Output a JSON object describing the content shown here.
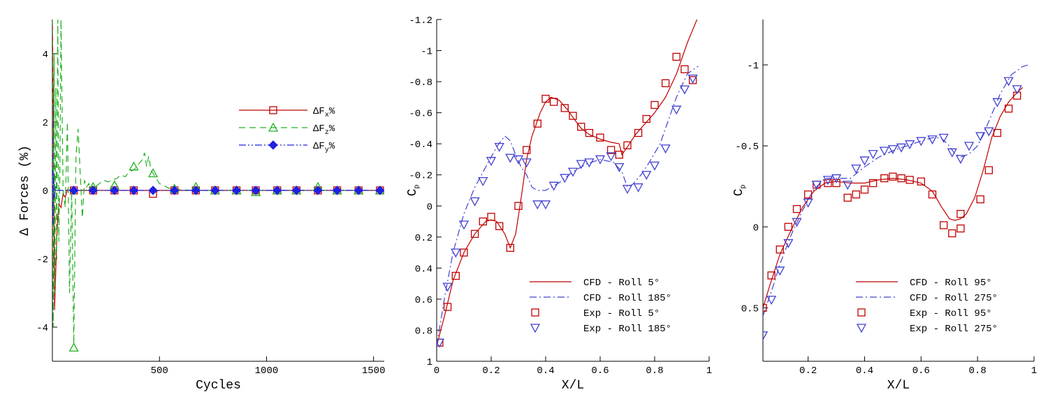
{
  "chart_data": [
    {
      "type": "line",
      "xlabel": "Cycles",
      "ylabel": "Δ Forces (%)",
      "xlim": [
        0,
        1550
      ],
      "ylim": [
        -5,
        5
      ],
      "xticks": [
        500,
        1000,
        1500
      ],
      "yticks": [
        4,
        2,
        0,
        -2,
        -4
      ],
      "legend_position": "center-right",
      "series": [
        {
          "name": "ΔFx%",
          "name_base": "ΔF",
          "name_sub": "x",
          "name_suffix": "%",
          "color": "#c00000",
          "dash": "solid",
          "marker": "square-open",
          "x": [
            0,
            5,
            10,
            15,
            20,
            25,
            30,
            40,
            50,
            60,
            70,
            80,
            100,
            120,
            150,
            200,
            250,
            300,
            350,
            400,
            450,
            470,
            500,
            1550
          ],
          "y": [
            5,
            2,
            -3.5,
            -2.5,
            -1.5,
            -0.8,
            -0.4,
            -0.5,
            -0.1,
            -0.2,
            0.02,
            0,
            0,
            0,
            0,
            0,
            0,
            0,
            0,
            0,
            0,
            -0.05,
            0,
            0
          ],
          "marker_x": [
            100,
            190,
            290,
            380,
            470,
            570,
            670,
            760,
            860,
            950,
            1050,
            1140,
            1240,
            1330,
            1430,
            1530
          ],
          "marker_y": [
            0,
            0,
            0,
            0,
            -0.1,
            0,
            0,
            0,
            0,
            0,
            0,
            0,
            0,
            0,
            0,
            0
          ]
        },
        {
          "name": "ΔFz%",
          "name_base": "ΔF",
          "name_sub": "z",
          "name_suffix": "%",
          "color": "#20b020",
          "dash": "dashed",
          "marker": "triangle-open",
          "x": [
            0,
            4,
            8,
            12,
            16,
            20,
            25,
            30,
            35,
            40,
            50,
            60,
            70,
            80,
            90,
            100,
            110,
            120,
            130,
            140,
            150,
            160,
            170,
            180,
            190,
            200,
            220,
            240,
            260,
            280,
            300,
            320,
            340,
            360,
            380,
            400,
            420,
            430,
            440,
            450,
            460,
            470,
            480,
            500,
            550,
            600,
            650,
            1550
          ],
          "y": [
            5,
            -4,
            4,
            -3,
            3,
            -2,
            5,
            -1.5,
            0.5,
            5,
            0,
            -0.5,
            2,
            -3,
            0,
            -4.5,
            1,
            1.8,
            0.5,
            -0.8,
            0.3,
            0.1,
            0.2,
            0,
            0.15,
            0.1,
            0.2,
            0.3,
            0.25,
            0.3,
            0.35,
            0.45,
            0.4,
            0.55,
            0.6,
            0.75,
            0.9,
            1.1,
            0.7,
            1.0,
            0.6,
            0.5,
            0.4,
            0.2,
            0.05,
            0.02,
            0,
            0
          ],
          "marker_x": [
            100,
            190,
            290,
            380,
            470,
            570,
            670,
            760,
            860,
            950,
            1050,
            1140,
            1240,
            1330,
            1430,
            1530
          ],
          "marker_y": [
            -4.6,
            0.1,
            0.15,
            0.7,
            0.5,
            0.05,
            0.1,
            0,
            0,
            -0.05,
            0,
            0,
            0.1,
            0,
            0,
            0
          ]
        },
        {
          "name": "ΔFy%",
          "name_base": "ΔF",
          "name_sub": "y",
          "name_suffix": "%",
          "color": "#2020e0",
          "dash": "dashdotdot",
          "marker": "diamond-filled",
          "x": [
            0,
            3,
            6,
            10,
            15,
            20,
            30,
            50,
            1550
          ],
          "y": [
            2.5,
            -1.0,
            0.5,
            -0.2,
            0.1,
            0,
            0,
            0,
            0
          ],
          "marker_x": [
            100,
            190,
            290,
            380,
            470,
            570,
            670,
            760,
            860,
            950,
            1050,
            1140,
            1240,
            1330,
            1430,
            1530
          ],
          "marker_y": [
            0,
            0,
            0,
            0,
            0,
            0,
            0,
            0,
            0,
            0,
            0,
            0,
            0,
            0,
            0,
            0
          ]
        }
      ]
    },
    {
      "type": "line",
      "xlabel": "X/L",
      "ylabel": "Cp",
      "ylabel_base": "C",
      "ylabel_sub": "p",
      "xlim": [
        0,
        1
      ],
      "ylim": [
        1,
        -1.2
      ],
      "y_inverted": true,
      "xticks": [
        0,
        0.2,
        0.4,
        0.6,
        0.8,
        1
      ],
      "xtick_labels": [
        "0",
        "0.2",
        "0.4",
        "0.6",
        "0.8",
        "1"
      ],
      "yticks": [
        -1.2,
        -1,
        -0.8,
        -0.6,
        -0.4,
        -0.2,
        0,
        0.2,
        0.4,
        0.6,
        0.8,
        1
      ],
      "ytick_labels": [
        "-1.2",
        "-1",
        "-0.8",
        "-0.6",
        "-0.4",
        "-0.2",
        "0",
        "0.2",
        "0.4",
        "0.6",
        "0.8",
        "1"
      ],
      "legend_position": "bottom-right",
      "series": [
        {
          "name": "CFD - Roll 5°",
          "color": "#c00000",
          "dash": "solid",
          "marker": "none",
          "x": [
            0.0,
            0.03,
            0.06,
            0.1,
            0.14,
            0.18,
            0.2,
            0.22,
            0.25,
            0.27,
            0.29,
            0.31,
            0.33,
            0.35,
            0.38,
            0.4,
            0.42,
            0.45,
            0.48,
            0.5,
            0.53,
            0.56,
            0.6,
            0.64,
            0.67,
            0.68,
            0.7,
            0.73,
            0.77,
            0.8,
            0.84,
            0.88,
            0.92,
            0.96
          ],
          "y": [
            0.9,
            0.7,
            0.48,
            0.3,
            0.18,
            0.1,
            0.09,
            0.1,
            0.18,
            0.27,
            0.18,
            -0.05,
            -0.3,
            -0.45,
            -0.6,
            -0.67,
            -0.7,
            -0.68,
            -0.62,
            -0.57,
            -0.5,
            -0.46,
            -0.43,
            -0.41,
            -0.4,
            -0.33,
            -0.38,
            -0.46,
            -0.54,
            -0.6,
            -0.7,
            -0.85,
            -1.05,
            -1.22
          ]
        },
        {
          "name": "CFD - Roll 185°",
          "color": "#4040d0",
          "dash": "dashdot",
          "marker": "none",
          "x": [
            0.0,
            0.03,
            0.06,
            0.1,
            0.14,
            0.18,
            0.22,
            0.25,
            0.27,
            0.29,
            0.31,
            0.33,
            0.35,
            0.37,
            0.4,
            0.45,
            0.5,
            0.55,
            0.6,
            0.65,
            0.68,
            0.7,
            0.72,
            0.75,
            0.78,
            0.82,
            0.85,
            0.88,
            0.92,
            0.96
          ],
          "y": [
            0.9,
            0.58,
            0.3,
            0.05,
            -0.12,
            -0.25,
            -0.38,
            -0.45,
            -0.42,
            -0.33,
            -0.25,
            -0.2,
            -0.12,
            -0.1,
            -0.1,
            -0.15,
            -0.22,
            -0.27,
            -0.3,
            -0.28,
            -0.22,
            -0.12,
            -0.14,
            -0.2,
            -0.28,
            -0.4,
            -0.55,
            -0.7,
            -0.85,
            -0.9
          ]
        },
        {
          "name": "Exp - Roll 5°",
          "color": "#c00000",
          "dash": "none",
          "marker": "square-open",
          "x": [
            0.01,
            0.04,
            0.07,
            0.1,
            0.14,
            0.17,
            0.2,
            0.23,
            0.27,
            0.3,
            0.33,
            0.37,
            0.4,
            0.43,
            0.47,
            0.5,
            0.53,
            0.56,
            0.6,
            0.64,
            0.67,
            0.7,
            0.74,
            0.77,
            0.8,
            0.84,
            0.88,
            0.91,
            0.94
          ],
          "y": [
            0.88,
            0.65,
            0.45,
            0.3,
            0.18,
            0.1,
            0.07,
            0.13,
            0.27,
            0.0,
            -0.36,
            -0.53,
            -0.69,
            -0.67,
            -0.63,
            -0.58,
            -0.51,
            -0.47,
            -0.44,
            -0.36,
            -0.33,
            -0.39,
            -0.47,
            -0.56,
            -0.65,
            -0.79,
            -0.96,
            -0.88,
            -0.81
          ]
        },
        {
          "name": "Exp - Roll 185°",
          "color": "#4040d0",
          "dash": "none",
          "marker": "triangle-down-open",
          "x": [
            0.01,
            0.04,
            0.07,
            0.1,
            0.14,
            0.17,
            0.2,
            0.23,
            0.27,
            0.3,
            0.33,
            0.37,
            0.4,
            0.43,
            0.47,
            0.5,
            0.53,
            0.56,
            0.6,
            0.64,
            0.67,
            0.7,
            0.74,
            0.77,
            0.8,
            0.84,
            0.88,
            0.91,
            0.94
          ],
          "y": [
            0.88,
            0.52,
            0.3,
            0.12,
            -0.03,
            -0.16,
            -0.29,
            -0.38,
            -0.31,
            -0.3,
            -0.28,
            -0.01,
            -0.01,
            -0.13,
            -0.18,
            -0.22,
            -0.27,
            -0.28,
            -0.3,
            -0.32,
            -0.25,
            -0.11,
            -0.12,
            -0.2,
            -0.26,
            -0.37,
            -0.62,
            -0.75,
            -0.82
          ]
        }
      ]
    },
    {
      "type": "line",
      "xlabel": "X/L",
      "ylabel": "Cp",
      "ylabel_base": "C",
      "ylabel_sub": "p",
      "xlim": [
        0.04,
        1
      ],
      "ylim": [
        0.83,
        -1.28
      ],
      "y_inverted": true,
      "xticks": [
        0.2,
        0.4,
        0.6,
        0.8,
        1
      ],
      "xtick_labels": [
        "0.2",
        "0.4",
        "0.6",
        "0.8",
        "1"
      ],
      "yticks": [
        -1,
        -0.5,
        0,
        0.5
      ],
      "ytick_labels": [
        "-1",
        "-0.5",
        "0",
        "0.5"
      ],
      "legend_position": "bottom-right",
      "series": [
        {
          "name": "CFD - Roll 95°",
          "color": "#c00000",
          "dash": "solid",
          "marker": "none",
          "x": [
            0.04,
            0.07,
            0.1,
            0.14,
            0.18,
            0.22,
            0.26,
            0.3,
            0.35,
            0.4,
            0.45,
            0.5,
            0.55,
            0.6,
            0.64,
            0.67,
            0.7,
            0.72,
            0.74,
            0.76,
            0.79,
            0.82,
            0.85,
            0.88,
            0.91,
            0.94,
            0.96
          ],
          "y": [
            0.5,
            0.33,
            0.17,
            0.02,
            -0.12,
            -0.22,
            -0.27,
            -0.28,
            -0.27,
            -0.27,
            -0.29,
            -0.3,
            -0.29,
            -0.27,
            -0.22,
            -0.13,
            -0.05,
            -0.04,
            -0.05,
            -0.08,
            -0.18,
            -0.35,
            -0.55,
            -0.68,
            -0.77,
            -0.83,
            -0.86
          ]
        },
        {
          "name": "CFD - Roll 275°",
          "color": "#4040d0",
          "dash": "dashdot",
          "marker": "none",
          "x": [
            0.04,
            0.07,
            0.1,
            0.14,
            0.18,
            0.22,
            0.26,
            0.3,
            0.35,
            0.4,
            0.45,
            0.5,
            0.55,
            0.6,
            0.64,
            0.67,
            0.7,
            0.72,
            0.74,
            0.77,
            0.8,
            0.84,
            0.88,
            0.92,
            0.96,
            0.98
          ],
          "y": [
            0.55,
            0.4,
            0.23,
            0.05,
            -0.1,
            -0.23,
            -0.3,
            -0.3,
            -0.3,
            -0.37,
            -0.43,
            -0.47,
            -0.5,
            -0.53,
            -0.55,
            -0.55,
            -0.5,
            -0.45,
            -0.43,
            -0.45,
            -0.5,
            -0.65,
            -0.82,
            -0.94,
            -0.99,
            -1.0
          ]
        },
        {
          "name": "Exp - Roll 95°",
          "color": "#c00000",
          "dash": "none",
          "marker": "square-open",
          "x": [
            0.04,
            0.07,
            0.1,
            0.13,
            0.16,
            0.2,
            0.23,
            0.27,
            0.3,
            0.34,
            0.37,
            0.4,
            0.43,
            0.47,
            0.5,
            0.53,
            0.56,
            0.6,
            0.64,
            0.68,
            0.71,
            0.74,
            0.74,
            0.81,
            0.84,
            0.87,
            0.91,
            0.94
          ],
          "y": [
            0.5,
            0.3,
            0.14,
            0.0,
            -0.11,
            -0.2,
            -0.26,
            -0.27,
            -0.27,
            -0.18,
            -0.2,
            -0.23,
            -0.27,
            -0.3,
            -0.31,
            -0.3,
            -0.29,
            -0.28,
            -0.2,
            -0.01,
            0.04,
            0.01,
            -0.08,
            -0.17,
            -0.35,
            -0.58,
            -0.73,
            -0.81
          ]
        },
        {
          "name": "Exp - Roll 275°",
          "color": "#4040d0",
          "dash": "none",
          "marker": "triangle-down-open",
          "x": [
            0.04,
            0.07,
            0.1,
            0.13,
            0.16,
            0.2,
            0.23,
            0.27,
            0.3,
            0.34,
            0.37,
            0.4,
            0.43,
            0.47,
            0.5,
            0.53,
            0.56,
            0.6,
            0.64,
            0.68,
            0.71,
            0.74,
            0.77,
            0.81,
            0.84,
            0.87,
            0.91,
            0.94
          ],
          "y": [
            0.67,
            0.45,
            0.27,
            0.1,
            -0.03,
            -0.15,
            -0.26,
            -0.29,
            -0.3,
            -0.26,
            -0.36,
            -0.41,
            -0.45,
            -0.47,
            -0.48,
            -0.49,
            -0.51,
            -0.53,
            -0.54,
            -0.55,
            -0.46,
            -0.42,
            -0.5,
            -0.56,
            -0.59,
            -0.77,
            -0.9,
            -0.85
          ]
        }
      ]
    }
  ]
}
